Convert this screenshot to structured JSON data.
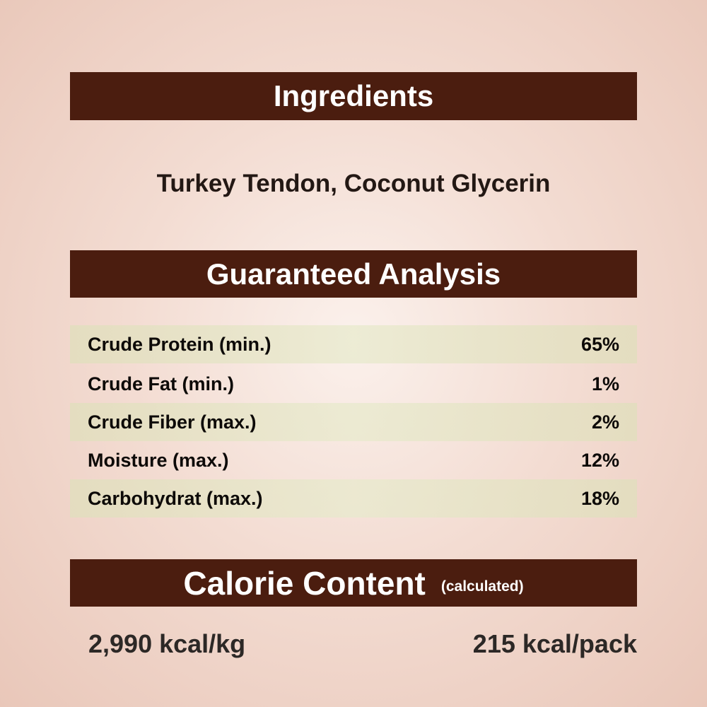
{
  "ingredients": {
    "heading": "Ingredients",
    "text": "Turkey Tendon, Coconut Glycerin"
  },
  "analysis": {
    "heading": "Guaranteed Analysis",
    "rows": [
      {
        "label": "Crude Protein (min.)",
        "value": "65%"
      },
      {
        "label": "Crude Fat (min.)",
        "value": "1%"
      },
      {
        "label": "Crude Fiber (max.)",
        "value": "2%"
      },
      {
        "label": "Moisture (max.)",
        "value": "12%"
      },
      {
        "label": "Carbohydrat (max.)",
        "value": "18%"
      }
    ]
  },
  "calorie": {
    "heading": "Calorie Content",
    "note": "(calculated)",
    "per_kg": "2,990 kcal/kg",
    "per_pack": "215 kcal/pack"
  },
  "colors": {
    "header_bar": "#4b1d0f",
    "row_shade": "#e2deBE",
    "background": "#f3dcd2"
  }
}
